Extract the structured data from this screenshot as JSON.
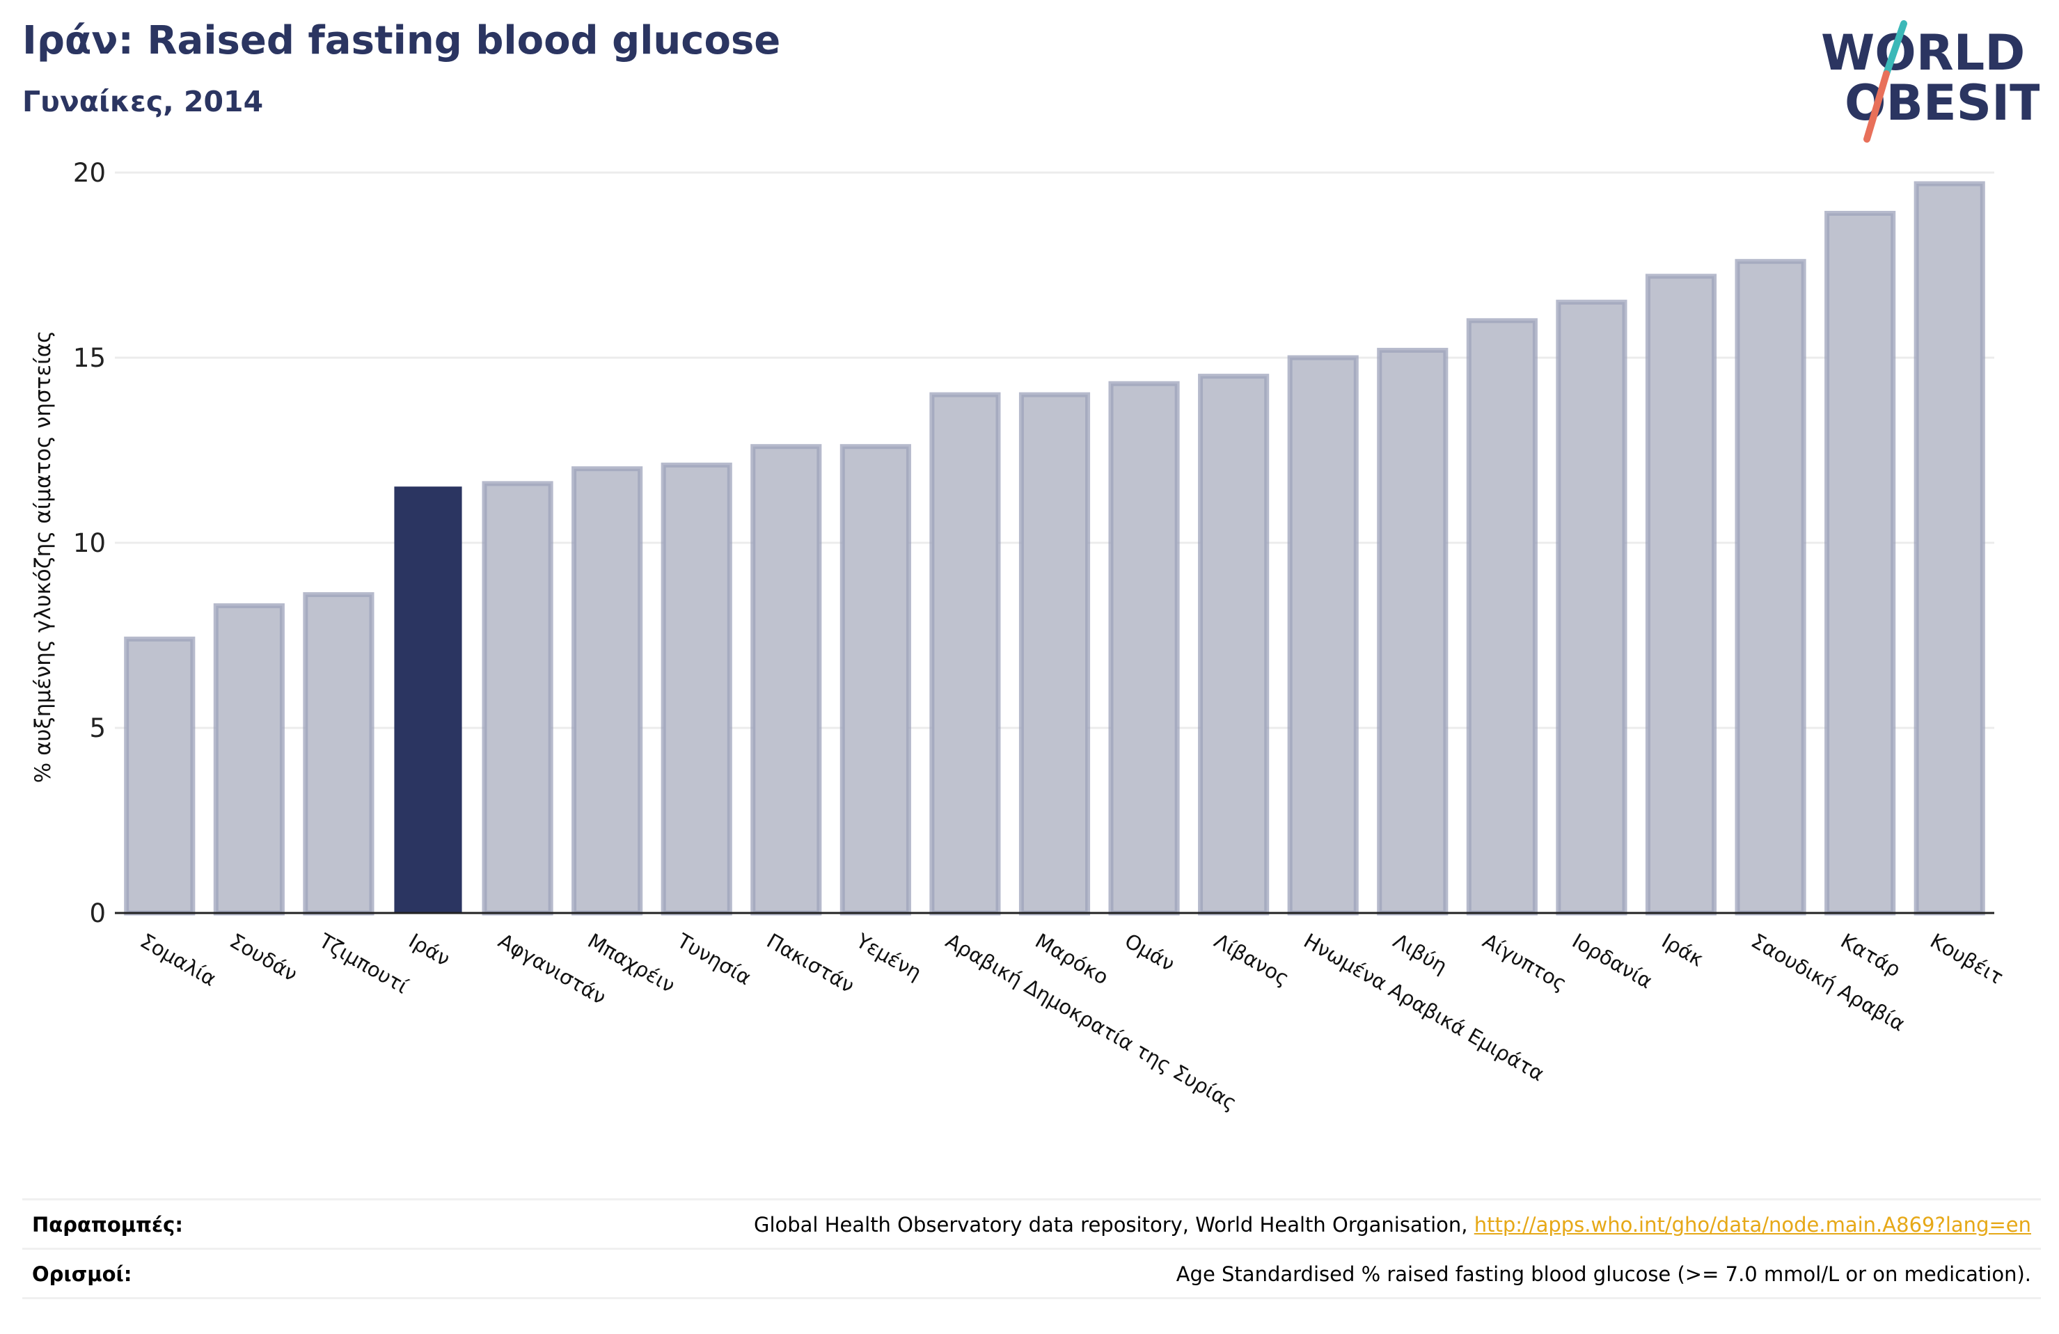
{
  "header": {
    "title": "Ιράν: Raised fasting blood glucose",
    "subtitle": "Γυναίκες, 2014"
  },
  "logo": {
    "line1": "WORLD",
    "line2": "OBESITY",
    "text_color": "#2b3561",
    "slash_colors": [
      "#3bb8b8",
      "#e8705a"
    ]
  },
  "chart_data": {
    "type": "bar",
    "ylabel": "% αυξημένης γλυκόζης αίματος νηστείας",
    "ylim": [
      0,
      20
    ],
    "yticks": [
      0,
      5,
      10,
      15,
      20
    ],
    "grid": true,
    "highlight_category": "Ιράν",
    "colors": {
      "bar": "#bfc2cf",
      "bar_edge": "#9ea3bb",
      "highlight": "#2b3561"
    },
    "categories": [
      "Σομαλία",
      "Σουδάν",
      "Τζιμπουτί",
      "Ιράν",
      "Αφγανιστάν",
      "Μπαχρέιν",
      "Τυνησία",
      "Πακιστάν",
      "Υεμένη",
      "Αραβική Δημοκρατία της Συρίας",
      "Μαρόκο",
      "Ομάν",
      "Λίβανος",
      "Ηνωμένα Αραβικά Εμιράτα",
      "Λιβύη",
      "Αίγυπτος",
      "Ιορδανία",
      "Ιράκ",
      "Σαουδική Αραβία",
      "Κατάρ",
      "Κουβέιτ"
    ],
    "values": [
      7.4,
      8.3,
      8.6,
      11.5,
      11.6,
      12.0,
      12.1,
      12.6,
      12.6,
      14.0,
      14.0,
      14.3,
      14.5,
      15.0,
      15.2,
      16.0,
      16.5,
      17.2,
      17.6,
      18.9,
      19.7
    ]
  },
  "footer": {
    "references_label": "Παραπομπές:",
    "references_text": "Global Health Observatory data repository, World Health Organisation, ",
    "references_link": "http://apps.who.int/gho/data/node.main.A869?lang=en",
    "definitions_label": "Ορισμοί:",
    "definitions_text": "Age Standardised % raised fasting blood glucose (>= 7.0 mmol/L or on medication)."
  }
}
